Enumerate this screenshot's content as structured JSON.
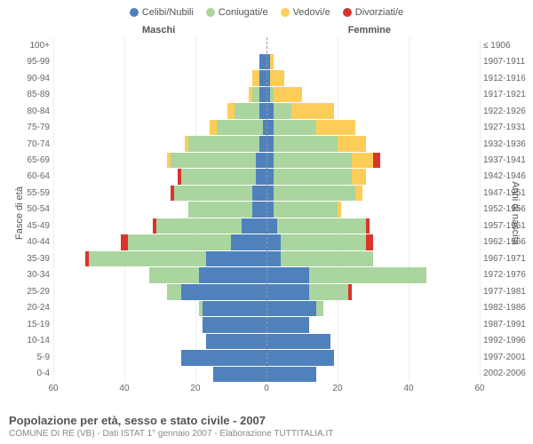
{
  "colors": {
    "celibi": "#4f81bd",
    "coniugati": "#aad59e",
    "vedovi": "#fccd59",
    "divorziati": "#d9352b",
    "grid": "#eeeeee",
    "centerline": "#999999",
    "text": "#666666"
  },
  "legend": [
    {
      "label": "Celibi/Nubili",
      "color": "#4f81bd"
    },
    {
      "label": "Coniugati/e",
      "color": "#aad59e"
    },
    {
      "label": "Vedovi/e",
      "color": "#fccd59"
    },
    {
      "label": "Divorziati/e",
      "color": "#d9352b"
    }
  ],
  "gender": {
    "male": "Maschi",
    "female": "Femmine"
  },
  "axes": {
    "left_title": "Fasce di età",
    "right_title": "Anni di nascita",
    "xmax": 60,
    "xticks": [
      60,
      40,
      20,
      0,
      20,
      40,
      60
    ]
  },
  "title": "Popolazione per età, sesso e stato civile - 2007",
  "subtitle": "COMUNE DI RE (VB) - Dati ISTAT 1° gennaio 2007 - Elaborazione TUTTITALIA.IT",
  "rows": [
    {
      "age": "100+",
      "birth": "≤ 1906",
      "m": {
        "c": 0,
        "co": 0,
        "v": 0,
        "d": 0
      },
      "f": {
        "c": 0,
        "co": 0,
        "v": 0,
        "d": 0
      }
    },
    {
      "age": "95-99",
      "birth": "1907-1911",
      "m": {
        "c": 2,
        "co": 0,
        "v": 0,
        "d": 0
      },
      "f": {
        "c": 1,
        "co": 0,
        "v": 1,
        "d": 0
      }
    },
    {
      "age": "90-94",
      "birth": "1912-1916",
      "m": {
        "c": 2,
        "co": 0,
        "v": 2,
        "d": 0
      },
      "f": {
        "c": 1,
        "co": 0,
        "v": 4,
        "d": 0
      }
    },
    {
      "age": "85-89",
      "birth": "1917-1921",
      "m": {
        "c": 2,
        "co": 2,
        "v": 1,
        "d": 0
      },
      "f": {
        "c": 1,
        "co": 1,
        "v": 8,
        "d": 0
      }
    },
    {
      "age": "80-84",
      "birth": "1922-1926",
      "m": {
        "c": 2,
        "co": 7,
        "v": 2,
        "d": 0
      },
      "f": {
        "c": 2,
        "co": 5,
        "v": 12,
        "d": 0
      }
    },
    {
      "age": "75-79",
      "birth": "1927-1931",
      "m": {
        "c": 1,
        "co": 13,
        "v": 2,
        "d": 0
      },
      "f": {
        "c": 2,
        "co": 12,
        "v": 11,
        "d": 0
      }
    },
    {
      "age": "70-74",
      "birth": "1932-1936",
      "m": {
        "c": 2,
        "co": 20,
        "v": 1,
        "d": 0
      },
      "f": {
        "c": 2,
        "co": 18,
        "v": 8,
        "d": 0
      }
    },
    {
      "age": "65-69",
      "birth": "1937-1941",
      "m": {
        "c": 3,
        "co": 24,
        "v": 1,
        "d": 0
      },
      "f": {
        "c": 2,
        "co": 22,
        "v": 6,
        "d": 2
      }
    },
    {
      "age": "60-64",
      "birth": "1942-1946",
      "m": {
        "c": 3,
        "co": 21,
        "v": 0,
        "d": 1
      },
      "f": {
        "c": 2,
        "co": 22,
        "v": 4,
        "d": 0
      }
    },
    {
      "age": "55-59",
      "birth": "1947-1951",
      "m": {
        "c": 4,
        "co": 22,
        "v": 0,
        "d": 1
      },
      "f": {
        "c": 2,
        "co": 23,
        "v": 2,
        "d": 0
      }
    },
    {
      "age": "50-54",
      "birth": "1952-1956",
      "m": {
        "c": 4,
        "co": 18,
        "v": 0,
        "d": 0
      },
      "f": {
        "c": 2,
        "co": 18,
        "v": 1,
        "d": 0
      }
    },
    {
      "age": "45-49",
      "birth": "1957-1961",
      "m": {
        "c": 7,
        "co": 24,
        "v": 0,
        "d": 1
      },
      "f": {
        "c": 3,
        "co": 25,
        "v": 0,
        "d": 1
      }
    },
    {
      "age": "40-44",
      "birth": "1962-1966",
      "m": {
        "c": 10,
        "co": 29,
        "v": 0,
        "d": 2
      },
      "f": {
        "c": 4,
        "co": 24,
        "v": 0,
        "d": 2
      }
    },
    {
      "age": "35-39",
      "birth": "1967-1971",
      "m": {
        "c": 17,
        "co": 33,
        "v": 0,
        "d": 1
      },
      "f": {
        "c": 4,
        "co": 26,
        "v": 0,
        "d": 0
      }
    },
    {
      "age": "30-34",
      "birth": "1972-1976",
      "m": {
        "c": 19,
        "co": 14,
        "v": 0,
        "d": 0
      },
      "f": {
        "c": 12,
        "co": 33,
        "v": 0,
        "d": 0
      }
    },
    {
      "age": "25-29",
      "birth": "1977-1981",
      "m": {
        "c": 24,
        "co": 4,
        "v": 0,
        "d": 0
      },
      "f": {
        "c": 12,
        "co": 11,
        "v": 0,
        "d": 1
      }
    },
    {
      "age": "20-24",
      "birth": "1982-1986",
      "m": {
        "c": 18,
        "co": 1,
        "v": 0,
        "d": 0
      },
      "f": {
        "c": 14,
        "co": 2,
        "v": 0,
        "d": 0
      }
    },
    {
      "age": "15-19",
      "birth": "1987-1991",
      "m": {
        "c": 18,
        "co": 0,
        "v": 0,
        "d": 0
      },
      "f": {
        "c": 12,
        "co": 0,
        "v": 0,
        "d": 0
      }
    },
    {
      "age": "10-14",
      "birth": "1992-1996",
      "m": {
        "c": 17,
        "co": 0,
        "v": 0,
        "d": 0
      },
      "f": {
        "c": 18,
        "co": 0,
        "v": 0,
        "d": 0
      }
    },
    {
      "age": "5-9",
      "birth": "1997-2001",
      "m": {
        "c": 24,
        "co": 0,
        "v": 0,
        "d": 0
      },
      "f": {
        "c": 19,
        "co": 0,
        "v": 0,
        "d": 0
      }
    },
    {
      "age": "0-4",
      "birth": "2002-2006",
      "m": {
        "c": 15,
        "co": 0,
        "v": 0,
        "d": 0
      },
      "f": {
        "c": 14,
        "co": 0,
        "v": 0,
        "d": 0
      }
    }
  ]
}
